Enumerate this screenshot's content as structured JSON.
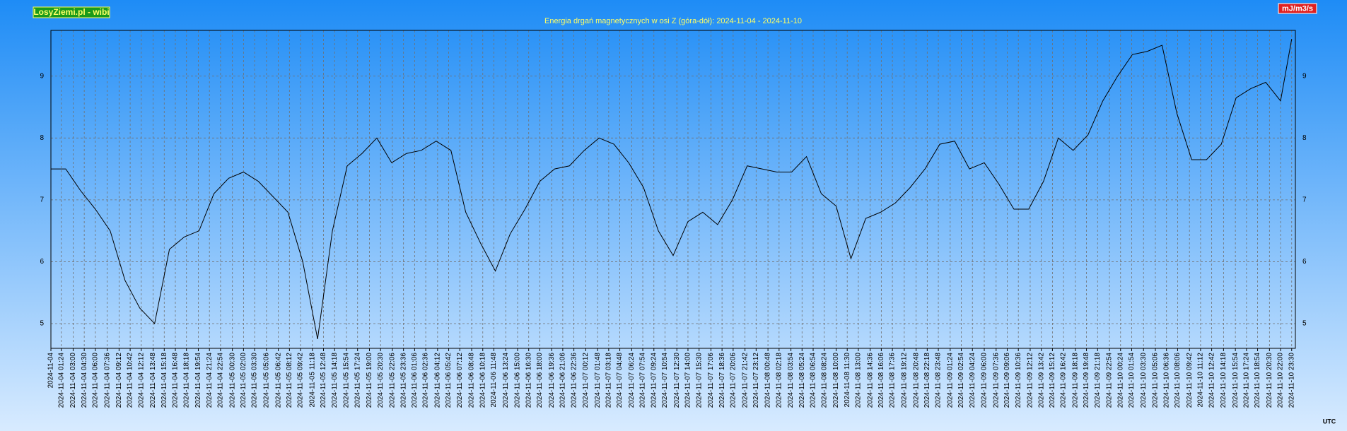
{
  "chart_data": {
    "type": "line",
    "brand": "LosyZiemi.pl - wibi",
    "title": "Energia drgań magnetycznych w osi Z (góra-dół): 2024-11-04 - 2024-11-10",
    "unit": "mJ/m3/s",
    "x_axis_note": "UTC",
    "color": "#000000",
    "grid": true,
    "x": [
      "2024-11-04 00:00",
      "2024-11-04 02:00",
      "2024-11-04 04:00",
      "2024-11-04 06:00",
      "2024-11-04 08:00",
      "2024-11-04 10:00",
      "2024-11-04 12:00",
      "2024-11-04 14:00",
      "2024-11-04 16:00",
      "2024-11-04 18:00",
      "2024-11-04 20:00",
      "2024-11-04 22:00",
      "2024-11-05 00:00",
      "2024-11-05 02:00",
      "2024-11-05 04:00",
      "2024-11-05 06:00",
      "2024-11-05 08:00",
      "2024-11-05 10:00",
      "2024-11-05 12:00",
      "2024-11-05 14:00",
      "2024-11-05 16:00",
      "2024-11-05 18:00",
      "2024-11-05 20:00",
      "2024-11-05 22:00",
      "2024-11-06 00:00",
      "2024-11-06 02:00",
      "2024-11-06 04:00",
      "2024-11-06 06:00",
      "2024-11-06 08:00",
      "2024-11-06 10:00",
      "2024-11-06 12:00",
      "2024-11-06 14:00",
      "2024-11-06 16:00",
      "2024-11-06 18:00",
      "2024-11-06 20:00",
      "2024-11-06 22:00",
      "2024-11-07 00:00",
      "2024-11-07 02:00",
      "2024-11-07 04:00",
      "2024-11-07 06:00",
      "2024-11-07 08:00",
      "2024-11-07 10:00",
      "2024-11-07 12:00",
      "2024-11-07 14:00",
      "2024-11-07 16:00",
      "2024-11-07 18:00",
      "2024-11-07 20:00",
      "2024-11-07 22:00",
      "2024-11-08 00:00",
      "2024-11-08 02:00",
      "2024-11-08 04:00",
      "2024-11-08 06:00",
      "2024-11-08 08:00",
      "2024-11-08 10:00",
      "2024-11-08 12:00",
      "2024-11-08 14:00",
      "2024-11-08 16:00",
      "2024-11-08 18:00",
      "2024-11-08 20:00",
      "2024-11-08 22:00",
      "2024-11-09 00:00",
      "2024-11-09 02:00",
      "2024-11-09 04:00",
      "2024-11-09 06:00",
      "2024-11-09 08:00",
      "2024-11-09 10:00",
      "2024-11-09 12:00",
      "2024-11-09 14:00",
      "2024-11-09 16:00",
      "2024-11-09 18:00",
      "2024-11-09 20:00",
      "2024-11-09 22:00",
      "2024-11-10 00:00",
      "2024-11-10 02:00",
      "2024-11-10 04:00",
      "2024-11-10 06:00",
      "2024-11-10 08:00",
      "2024-11-10 10:00",
      "2024-11-10 12:00",
      "2024-11-10 14:00",
      "2024-11-10 16:00",
      "2024-11-10 18:00",
      "2024-11-10 20:00",
      "2024-11-10 22:00",
      "2024-11-10 23:30"
    ],
    "values": [
      7.5,
      7.5,
      7.15,
      6.85,
      6.5,
      5.7,
      5.25,
      5.0,
      6.2,
      6.4,
      6.5,
      7.1,
      7.35,
      7.45,
      7.3,
      7.05,
      6.8,
      6.0,
      4.75,
      6.5,
      7.55,
      7.75,
      8.0,
      7.6,
      7.75,
      7.8,
      7.95,
      7.8,
      6.8,
      6.3,
      5.85,
      6.45,
      6.85,
      7.3,
      7.5,
      7.55,
      7.8,
      8.0,
      7.9,
      7.6,
      7.2,
      6.5,
      6.1,
      6.65,
      6.8,
      6.6,
      7.0,
      7.55,
      7.5,
      7.45,
      7.45,
      7.7,
      7.1,
      6.9,
      6.05,
      6.7,
      6.8,
      6.95,
      7.2,
      7.5,
      7.9,
      7.95,
      7.5,
      7.6,
      7.25,
      6.85,
      6.85,
      7.3,
      8.0,
      7.8,
      8.05,
      8.6,
      9.0,
      9.35,
      9.4,
      9.5,
      8.4,
      7.65,
      7.65,
      7.9,
      8.65,
      8.8,
      8.9,
      8.6,
      9.6
    ],
    "xlim": [
      "2024-11-04 00:00",
      "2024-11-11 00:00"
    ],
    "xticks": [
      "2024-11-04",
      "2024-11-04 01:24",
      "2024-11-04 03:00",
      "2024-11-04 04:30",
      "2024-11-04 06:00",
      "2024-11-04 07:36",
      "2024-11-04 09:12",
      "2024-11-04 10:42",
      "2024-11-04 12:12",
      "2024-11-04 13:48",
      "2024-11-04 15:18",
      "2024-11-04 16:48",
      "2024-11-04 18:18",
      "2024-11-04 19:54",
      "2024-11-04 21:24",
      "2024-11-04 22:54",
      "2024-11-05 00:30",
      "2024-11-05 02:00",
      "2024-11-05 03:30",
      "2024-11-05 05:06",
      "2024-11-05 06:42",
      "2024-11-05 08:12",
      "2024-11-05 09:42",
      "2024-11-05 11:18",
      "2024-11-05 12:48",
      "2024-11-05 14:18",
      "2024-11-05 15:54",
      "2024-11-05 17:24",
      "2024-11-05 19:00",
      "2024-11-05 20:30",
      "2024-11-05 22:06",
      "2024-11-05 23:36",
      "2024-11-06 01:06",
      "2024-11-06 02:36",
      "2024-11-06 04:12",
      "2024-11-06 05:42",
      "2024-11-06 07:12",
      "2024-11-06 08:48",
      "2024-11-06 10:18",
      "2024-11-06 11:48",
      "2024-11-06 13:24",
      "2024-11-06 15:00",
      "2024-11-06 16:30",
      "2024-11-06 18:00",
      "2024-11-06 19:36",
      "2024-11-06 21:06",
      "2024-11-06 22:36",
      "2024-11-07 00:12",
      "2024-11-07 01:48",
      "2024-11-07 03:18",
      "2024-11-07 04:48",
      "2024-11-07 06:24",
      "2024-11-07 07:54",
      "2024-11-07 09:24",
      "2024-11-07 10:54",
      "2024-11-07 12:30",
      "2024-11-07 14:00",
      "2024-11-07 15:30",
      "2024-11-07 17:06",
      "2024-11-07 18:36",
      "2024-11-07 20:06",
      "2024-11-07 21:42",
      "2024-11-07 23:12",
      "2024-11-08 00:48",
      "2024-11-08 02:18",
      "2024-11-08 03:54",
      "2024-11-08 05:24",
      "2024-11-08 06:54",
      "2024-11-08 08:24",
      "2024-11-08 10:00",
      "2024-11-08 11:30",
      "2024-11-08 13:00",
      "2024-11-08 14:36",
      "2024-11-08 16:06",
      "2024-11-08 17:36",
      "2024-11-08 19:12",
      "2024-11-08 20:48",
      "2024-11-08 22:18",
      "2024-11-08 23:48",
      "2024-11-09 01:24",
      "2024-11-09 02:54",
      "2024-11-09 04:24",
      "2024-11-09 06:00",
      "2024-11-09 07:36",
      "2024-11-09 09:06",
      "2024-11-09 10:36",
      "2024-11-09 12:12",
      "2024-11-09 13:42",
      "2024-11-09 15:12",
      "2024-11-09 16:42",
      "2024-11-09 18:18",
      "2024-11-09 19:48",
      "2024-11-09 21:18",
      "2024-11-09 22:54",
      "2024-11-10 00:24",
      "2024-11-10 01:54",
      "2024-11-10 03:30",
      "2024-11-10 05:06",
      "2024-11-10 06:36",
      "2024-11-10 08:06",
      "2024-11-10 09:42",
      "2024-11-10 11:12",
      "2024-11-10 12:42",
      "2024-11-10 14:18",
      "2024-11-10 15:54",
      "2024-11-10 17:24",
      "2024-11-10 18:54",
      "2024-11-10 20:30",
      "2024-11-10 22:00",
      "2024-11-10 23:30"
    ],
    "ylim": [
      4.6,
      9.74
    ],
    "yticks": [
      5,
      6,
      7,
      8,
      9
    ]
  }
}
